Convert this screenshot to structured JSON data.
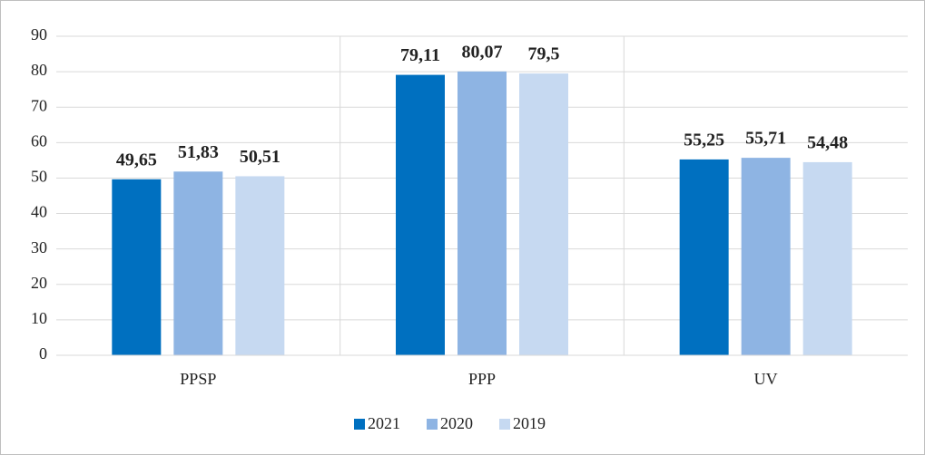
{
  "chart_data": {
    "type": "bar",
    "categories": [
      "PPSP",
      "PPP",
      "UV"
    ],
    "series": [
      {
        "name": "2021",
        "color": "#0070c0",
        "values": [
          49.65,
          79.11,
          55.25
        ],
        "value_labels": [
          "49,65",
          "79,11",
          "55,25"
        ]
      },
      {
        "name": "2020",
        "color": "#8eb4e3",
        "values": [
          51.83,
          80.07,
          55.71
        ],
        "value_labels": [
          "51,83",
          "80,07",
          "55,71"
        ]
      },
      {
        "name": "2019",
        "color": "#c6d9f1",
        "values": [
          50.51,
          79.5,
          54.48
        ],
        "value_labels": [
          "50,51",
          "79,5",
          "54,48"
        ]
      }
    ],
    "ylim": [
      0,
      90
    ],
    "yticks": [
      0,
      10,
      20,
      30,
      40,
      50,
      60,
      70,
      80,
      90
    ],
    "grid": true,
    "legend": "bottom"
  }
}
